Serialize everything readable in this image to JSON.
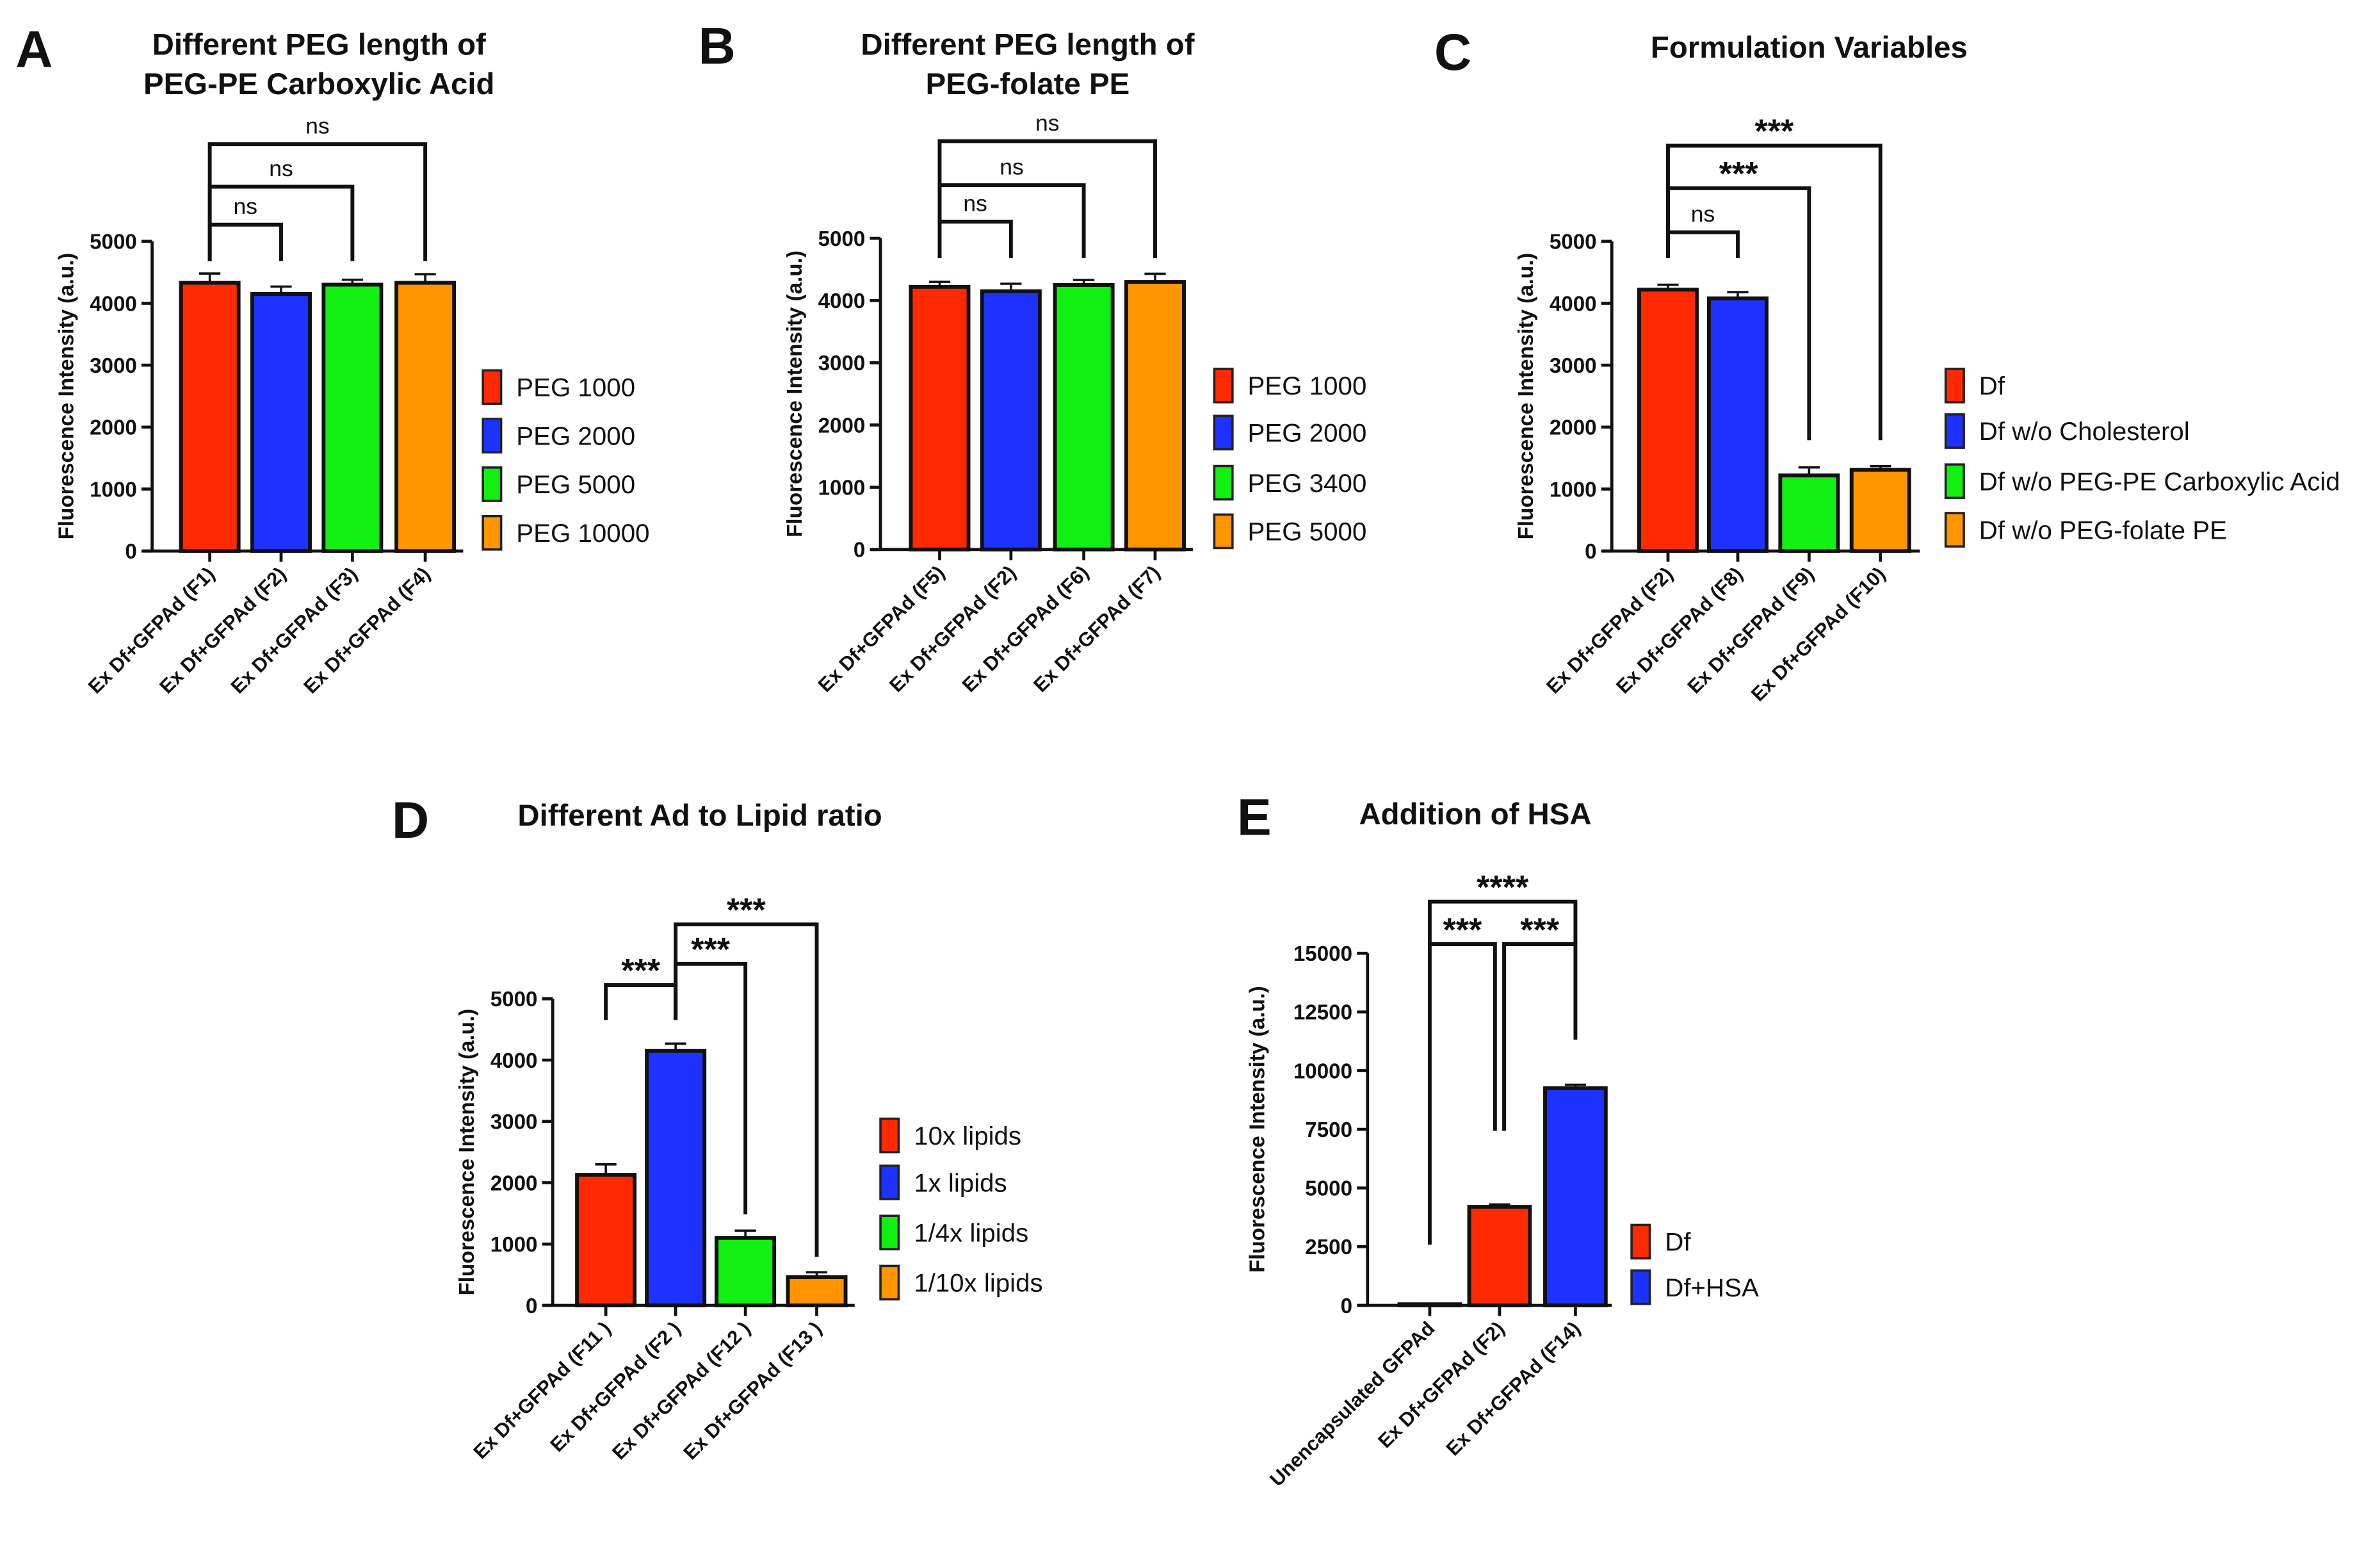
{
  "colors": {
    "red": "#ff2a00",
    "blue": "#1e32ff",
    "green": "#12f012",
    "orange": "#ff9500"
  },
  "chart_data": [
    {
      "type": "bar",
      "letter": "A",
      "title": [
        "Different PEG length of",
        "PEG-PE Carboxylic Acid"
      ],
      "ylabel": "Fluorescence Intensity (a.u.)",
      "xlabel": "",
      "ylim": [
        0,
        5000
      ],
      "yticks": [
        "0",
        "1000",
        "2000",
        "3000",
        "4000",
        "5000"
      ],
      "ytick_values": [
        0,
        1000,
        2000,
        3000,
        4000,
        5000
      ],
      "categories": [
        "Ex Df+GFPAd (F1)",
        "Ex Df+GFPAd (F2)",
        "Ex Df+GFPAd (F3)",
        "Ex Df+GFPAd (F4)"
      ],
      "values": [
        4330,
        4150,
        4300,
        4330
      ],
      "errors": [
        150,
        120,
        80,
        140
      ],
      "bar_colors": [
        "red",
        "blue",
        "green",
        "orange"
      ],
      "legend": [
        "PEG 1000",
        "PEG 2000",
        "PEG 5000",
        "PEG 10000"
      ],
      "legend_position": "right",
      "significance": [
        {
          "pair": [
            0,
            1
          ],
          "label": "ns"
        },
        {
          "pair": [
            0,
            2
          ],
          "label": "ns"
        },
        {
          "pair": [
            0,
            3
          ],
          "label": "ns"
        }
      ]
    },
    {
      "type": "bar",
      "letter": "B",
      "title": [
        "Different PEG length of",
        "PEG-folate PE"
      ],
      "ylabel": "Fluorescence Intensity (a.u.)",
      "xlabel": "",
      "ylim": [
        0,
        5000
      ],
      "yticks": [
        "0",
        "1000",
        "2000",
        "3000",
        "4000",
        "5000"
      ],
      "ytick_values": [
        0,
        1000,
        2000,
        3000,
        4000,
        5000
      ],
      "categories": [
        "Ex Df+GFPAd (F5)",
        "Ex Df+GFPAd (F2)",
        "Ex Df+GFPAd (F6)",
        "Ex Df+GFPAd (F7)"
      ],
      "values": [
        4220,
        4150,
        4250,
        4300
      ],
      "errors": [
        80,
        120,
        80,
        130
      ],
      "bar_colors": [
        "red",
        "blue",
        "green",
        "orange"
      ],
      "legend": [
        "PEG 1000",
        "PEG 2000",
        "PEG 3400",
        "PEG 5000"
      ],
      "legend_position": "right",
      "significance": [
        {
          "pair": [
            0,
            1
          ],
          "label": "ns"
        },
        {
          "pair": [
            0,
            2
          ],
          "label": "ns"
        },
        {
          "pair": [
            0,
            3
          ],
          "label": "ns"
        }
      ]
    },
    {
      "type": "bar",
      "letter": "C",
      "title": [
        "Formulation Variables"
      ],
      "ylabel": "Fluorescence Intensity (a.u.)",
      "xlabel": "",
      "ylim": [
        0,
        5000
      ],
      "yticks": [
        "0",
        "1000",
        "2000",
        "3000",
        "4000",
        "5000"
      ],
      "ytick_values": [
        0,
        1000,
        2000,
        3000,
        4000,
        5000
      ],
      "categories": [
        "Ex Df+GFPAd (F2)",
        "Ex Df+GFPAd (F8)",
        "Ex Df+GFPAd (F9)",
        "Ex Df+GFPAd (F10)"
      ],
      "values": [
        4220,
        4080,
        1220,
        1310
      ],
      "errors": [
        80,
        100,
        130,
        60
      ],
      "bar_colors": [
        "red",
        "blue",
        "green",
        "orange"
      ],
      "legend": [
        "Df",
        "Df w/o Cholesterol",
        "Df w/o PEG-PE Carboxylic Acid",
        "Df w/o PEG-folate PE"
      ],
      "legend_position": "right",
      "significance": [
        {
          "pair": [
            0,
            1
          ],
          "label": "ns"
        },
        {
          "pair": [
            0,
            2
          ],
          "label": "***"
        },
        {
          "pair": [
            0,
            3
          ],
          "label": "***"
        }
      ]
    },
    {
      "type": "bar",
      "letter": "D",
      "title": [
        "Different Ad to Lipid ratio"
      ],
      "ylabel": "Fluorescence Intensity (a.u.)",
      "xlabel": "",
      "ylim": [
        0,
        5000
      ],
      "yticks": [
        "0",
        "1000",
        "2000",
        "3000",
        "4000",
        "5000"
      ],
      "ytick_values": [
        0,
        1000,
        2000,
        3000,
        4000,
        5000
      ],
      "categories": [
        "Ex Df+GFPAd (F11 )",
        "Ex Df+GFPAd (F2 )",
        "Ex Df+GFPAd (F12 )",
        "Ex Df+GFPAd (F13 )"
      ],
      "values": [
        2130,
        4150,
        1100,
        460
      ],
      "errors": [
        170,
        120,
        120,
        80
      ],
      "bar_colors": [
        "red",
        "blue",
        "green",
        "orange"
      ],
      "legend": [
        "10x lipids",
        "1x lipids",
        "1/4x lipids",
        "1/10x lipids"
      ],
      "legend_position": "right",
      "significance": [
        {
          "pair": [
            0,
            1
          ],
          "label": "***"
        },
        {
          "pair": [
            1,
            2
          ],
          "label": "***"
        },
        {
          "pair": [
            1,
            3
          ],
          "label": "***"
        }
      ]
    },
    {
      "type": "bar",
      "letter": "E",
      "title": [
        "Addition of HSA"
      ],
      "ylabel": "Fluorescence Intensity (a.u.)",
      "xlabel": "",
      "ylim": [
        0,
        15000
      ],
      "yticks": [
        "0",
        "2500",
        "5000",
        "7500",
        "10000",
        "12500",
        "15000"
      ],
      "ytick_values": [
        0,
        2500,
        5000,
        7500,
        10000,
        12500,
        15000
      ],
      "categories": [
        "Unencapsulated GFPAd",
        "Ex Df+GFPAd (F2)",
        "Ex Df+GFPAd (F14)"
      ],
      "values": [
        50,
        4200,
        9250
      ],
      "errors": [
        20,
        100,
        150
      ],
      "bar_colors": [
        "",
        "red",
        "blue"
      ],
      "legend": [
        "Df",
        "Df+HSA"
      ],
      "legend_colors": [
        "red",
        "blue"
      ],
      "legend_position": "right",
      "significance": [
        {
          "pair": [
            0,
            1
          ],
          "label": "***"
        },
        {
          "pair": [
            1,
            2
          ],
          "label": "***"
        },
        {
          "pair": [
            0,
            2
          ],
          "label": "****"
        }
      ]
    }
  ]
}
